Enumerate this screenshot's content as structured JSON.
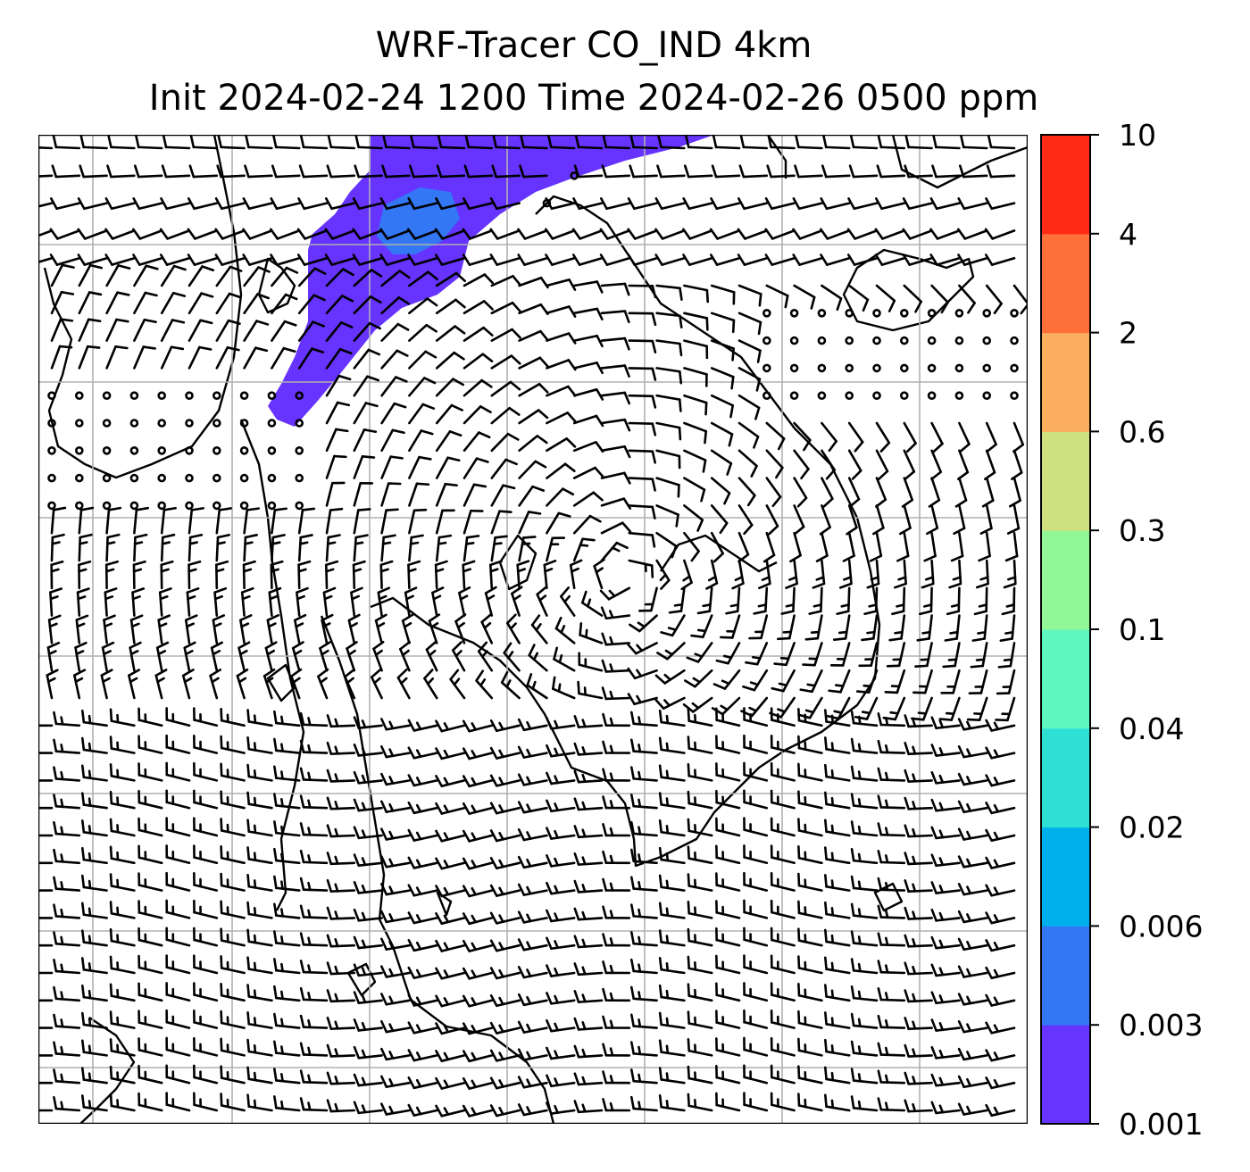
{
  "title": {
    "line1": "WRF-Tracer CO_IND 4km",
    "line2": "Init 2024-02-24 1200 Time 2024-02-26 0500 ppm"
  },
  "colorbar": {
    "levels": [
      "0.001",
      "0.003",
      "0.006",
      "0.02",
      "0.04",
      "0.1",
      "0.3",
      "0.6",
      "2",
      "4",
      "10"
    ],
    "colors": [
      "#6633ff",
      "#3377f5",
      "#00b0ec",
      "#2ee0d4",
      "#5ef7c0",
      "#92f797",
      "#cfe17f",
      "#fcae5f",
      "#ff6f3a",
      "#ff2a14"
    ]
  },
  "map": {
    "wind_barbs": "wind-barb-field",
    "plume_color": "#6633ff",
    "plume_core_color": "#3377f5",
    "gridline_color": "#b0b0b0"
  }
}
